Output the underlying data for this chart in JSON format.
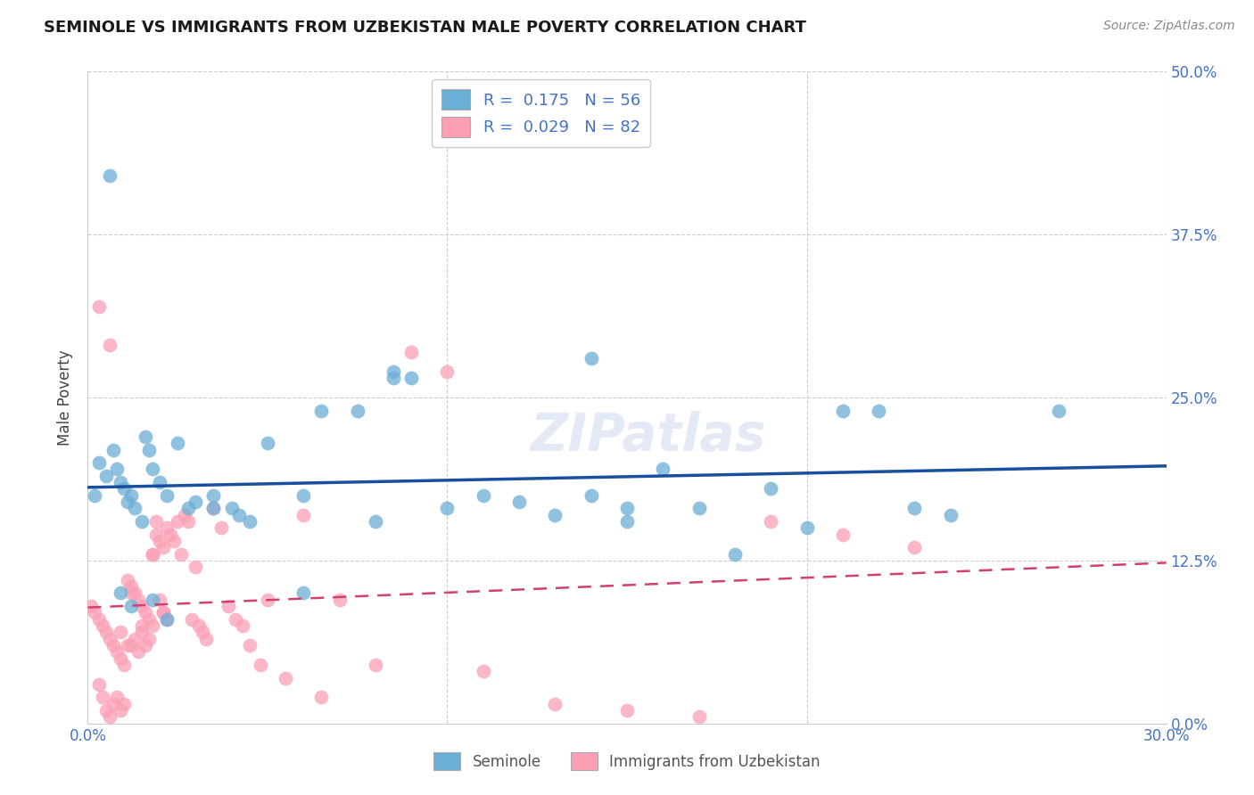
{
  "title": "SEMINOLE VS IMMIGRANTS FROM UZBEKISTAN MALE POVERTY CORRELATION CHART",
  "source": "Source: ZipAtlas.com",
  "ylabel_label": "Male Poverty",
  "xlim": [
    0.0,
    0.3
  ],
  "ylim": [
    0.0,
    0.5
  ],
  "seminole_R": 0.175,
  "seminole_N": 56,
  "uzbekistan_R": 0.029,
  "uzbekistan_N": 82,
  "seminole_color": "#6baed6",
  "uzbekistan_color": "#fa9fb5",
  "trend_blue": "#1a4fa0",
  "trend_pink": "#d04070",
  "watermark": "ZIPatlas",
  "seminole_x": [
    0.002,
    0.003,
    0.005,
    0.007,
    0.008,
    0.009,
    0.01,
    0.011,
    0.012,
    0.013,
    0.015,
    0.016,
    0.017,
    0.018,
    0.02,
    0.022,
    0.025,
    0.03,
    0.035,
    0.04,
    0.045,
    0.05,
    0.06,
    0.065,
    0.08,
    0.085,
    0.09,
    0.1,
    0.11,
    0.12,
    0.13,
    0.14,
    0.15,
    0.16,
    0.17,
    0.18,
    0.19,
    0.2,
    0.21,
    0.22,
    0.23,
    0.24,
    0.006,
    0.009,
    0.012,
    0.018,
    0.022,
    0.028,
    0.035,
    0.042,
    0.06,
    0.075,
    0.085,
    0.14,
    0.15,
    0.27
  ],
  "seminole_y": [
    0.175,
    0.2,
    0.19,
    0.21,
    0.195,
    0.185,
    0.18,
    0.17,
    0.175,
    0.165,
    0.155,
    0.22,
    0.21,
    0.195,
    0.185,
    0.175,
    0.215,
    0.17,
    0.175,
    0.165,
    0.155,
    0.215,
    0.175,
    0.24,
    0.155,
    0.27,
    0.265,
    0.165,
    0.175,
    0.17,
    0.16,
    0.175,
    0.165,
    0.195,
    0.165,
    0.13,
    0.18,
    0.15,
    0.24,
    0.24,
    0.165,
    0.16,
    0.42,
    0.1,
    0.09,
    0.095,
    0.08,
    0.165,
    0.165,
    0.16,
    0.1,
    0.24,
    0.265,
    0.28,
    0.155,
    0.24
  ],
  "uzbekistan_x": [
    0.001,
    0.002,
    0.003,
    0.003,
    0.004,
    0.004,
    0.005,
    0.005,
    0.006,
    0.006,
    0.007,
    0.007,
    0.008,
    0.008,
    0.009,
    0.009,
    0.01,
    0.01,
    0.011,
    0.011,
    0.012,
    0.012,
    0.013,
    0.013,
    0.014,
    0.014,
    0.015,
    0.015,
    0.016,
    0.016,
    0.017,
    0.017,
    0.018,
    0.018,
    0.019,
    0.019,
    0.02,
    0.02,
    0.021,
    0.021,
    0.022,
    0.022,
    0.023,
    0.024,
    0.025,
    0.026,
    0.027,
    0.028,
    0.029,
    0.03,
    0.031,
    0.032,
    0.033,
    0.035,
    0.037,
    0.039,
    0.041,
    0.043,
    0.045,
    0.048,
    0.05,
    0.055,
    0.06,
    0.065,
    0.07,
    0.08,
    0.09,
    0.1,
    0.11,
    0.13,
    0.15,
    0.17,
    0.19,
    0.21,
    0.23,
    0.003,
    0.006,
    0.009,
    0.012,
    0.015,
    0.018,
    0.021
  ],
  "uzbekistan_y": [
    0.09,
    0.085,
    0.08,
    0.03,
    0.075,
    0.02,
    0.07,
    0.01,
    0.065,
    0.005,
    0.06,
    0.015,
    0.055,
    0.02,
    0.05,
    0.01,
    0.045,
    0.015,
    0.11,
    0.06,
    0.105,
    0.06,
    0.1,
    0.065,
    0.095,
    0.055,
    0.09,
    0.07,
    0.085,
    0.06,
    0.08,
    0.065,
    0.075,
    0.13,
    0.145,
    0.155,
    0.14,
    0.095,
    0.135,
    0.085,
    0.15,
    0.08,
    0.145,
    0.14,
    0.155,
    0.13,
    0.16,
    0.155,
    0.08,
    0.12,
    0.075,
    0.07,
    0.065,
    0.165,
    0.15,
    0.09,
    0.08,
    0.075,
    0.06,
    0.045,
    0.095,
    0.035,
    0.16,
    0.02,
    0.095,
    0.045,
    0.285,
    0.27,
    0.04,
    0.015,
    0.01,
    0.005,
    0.155,
    0.145,
    0.135,
    0.32,
    0.29,
    0.07,
    0.1,
    0.075,
    0.13,
    0.085
  ]
}
